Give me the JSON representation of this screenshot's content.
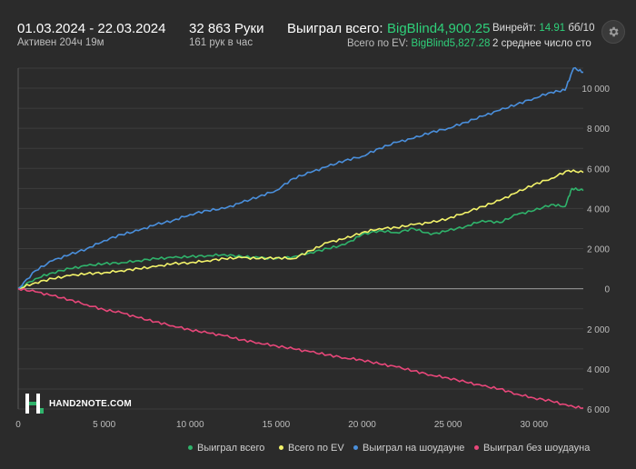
{
  "header": {
    "date_range": "01.03.2024 - 22.03.2024",
    "active": "Активен 204ч 19м",
    "hands": "32 863 Руки",
    "hands_per_hour": "161 рук в час",
    "won_total_label": "Выиграл всего:",
    "won_total_value": "BigBlind4,900.25",
    "ev_total_label": "Всего по EV:",
    "ev_total_value": "BigBlind5,827.28",
    "winrate_label": "Винрейт:",
    "winrate_value": "14.91",
    "winrate_unit": "бб/10",
    "avg_label": "2 среднее число сто"
  },
  "logo": {
    "text": "HAND2NOTE.COM"
  },
  "colors": {
    "background": "#2b2b2b",
    "won_total": "#2fb36b",
    "ev_total": "#f3f36a",
    "showdown": "#4a8fdc",
    "non_showdown": "#e8477a",
    "accent": "#2fd07a"
  },
  "chart_data": {
    "type": "line",
    "xlim": [
      0,
      32863
    ],
    "ylim": [
      -6000,
      11000
    ],
    "x_ticks": [
      0,
      5000,
      10000,
      15000,
      20000,
      25000,
      30000
    ],
    "x_tick_labels": [
      "0",
      "5 000",
      "10 000",
      "15 000",
      "20 000",
      "25 000",
      "30 000"
    ],
    "y_ticks": [
      -6000,
      -4000,
      -2000,
      0,
      2000,
      4000,
      6000,
      8000,
      10000
    ],
    "y_tick_labels": [
      "6 000",
      "4 000",
      "2 000",
      "0",
      "2 000",
      "4 000",
      "6 000",
      "8 000",
      "10 000"
    ],
    "legend_position": "bottom-right",
    "series": [
      {
        "name": "Выиграл всего",
        "color": "#2fb36b",
        "x": [
          0,
          1000,
          2000,
          3000,
          4000,
          5000,
          6000,
          7000,
          8000,
          9000,
          10000,
          11000,
          12000,
          13000,
          14000,
          15000,
          16000,
          17000,
          18000,
          19000,
          20000,
          21000,
          22000,
          23000,
          24000,
          25000,
          26000,
          27000,
          28000,
          29000,
          30000,
          31000,
          31800,
          32200,
          32863
        ],
        "y": [
          0,
          500,
          800,
          1000,
          1150,
          1250,
          1300,
          1400,
          1500,
          1550,
          1600,
          1650,
          1700,
          1600,
          1550,
          1500,
          1600,
          1800,
          2000,
          2200,
          2700,
          2900,
          2800,
          3000,
          2700,
          2900,
          3100,
          3400,
          3300,
          3700,
          3900,
          4200,
          4100,
          5000,
          4900
        ]
      },
      {
        "name": "Всего по EV",
        "color": "#f3f36a",
        "x": [
          0,
          1000,
          2000,
          3000,
          4000,
          5000,
          6000,
          7000,
          8000,
          9000,
          10000,
          11000,
          12000,
          13000,
          14000,
          15000,
          16000,
          17000,
          18000,
          19000,
          20000,
          21000,
          22000,
          23000,
          24000,
          25000,
          26000,
          27000,
          28000,
          29000,
          30000,
          31000,
          32000,
          32863
        ],
        "y": [
          0,
          300,
          500,
          650,
          750,
          800,
          900,
          1000,
          1100,
          1250,
          1300,
          1400,
          1500,
          1550,
          1500,
          1550,
          1500,
          1900,
          2300,
          2500,
          2800,
          3000,
          3050,
          3200,
          3300,
          3500,
          3800,
          4100,
          4400,
          4800,
          5200,
          5500,
          5900,
          5800
        ]
      },
      {
        "name": "Выиграл на шоудауне",
        "color": "#4a8fdc",
        "x": [
          0,
          1000,
          2000,
          3000,
          4000,
          5000,
          6000,
          7000,
          8000,
          9000,
          10000,
          11000,
          12000,
          13000,
          14000,
          15000,
          16000,
          17000,
          18000,
          19000,
          20000,
          21000,
          22000,
          23000,
          24000,
          25000,
          26000,
          27000,
          28000,
          29000,
          30000,
          31000,
          31800,
          32300,
          32863
        ],
        "y": [
          0,
          900,
          1400,
          1700,
          2000,
          2400,
          2700,
          2900,
          3200,
          3400,
          3700,
          3900,
          4000,
          4300,
          4600,
          4900,
          5500,
          5800,
          6100,
          6400,
          6600,
          7000,
          7300,
          7500,
          7800,
          8000,
          8300,
          8600,
          8900,
          9200,
          9500,
          9800,
          9900,
          11000,
          10800
        ]
      },
      {
        "name": "Выиграл без шоудауна",
        "color": "#e8477a",
        "x": [
          0,
          1000,
          2000,
          3000,
          4000,
          5000,
          6000,
          7000,
          8000,
          9000,
          10000,
          11000,
          12000,
          13000,
          14000,
          15000,
          16000,
          17000,
          18000,
          19000,
          20000,
          21000,
          22000,
          23000,
          24000,
          25000,
          26000,
          27000,
          28000,
          29000,
          30000,
          31000,
          32000,
          32863
        ],
        "y": [
          0,
          -150,
          -350,
          -550,
          -800,
          -1050,
          -1200,
          -1450,
          -1650,
          -1850,
          -2050,
          -2200,
          -2350,
          -2550,
          -2700,
          -2850,
          -3000,
          -3150,
          -3300,
          -3450,
          -3550,
          -3750,
          -3900,
          -4100,
          -4300,
          -4450,
          -4650,
          -4850,
          -5000,
          -5250,
          -5450,
          -5600,
          -5850,
          -5950
        ]
      }
    ]
  }
}
